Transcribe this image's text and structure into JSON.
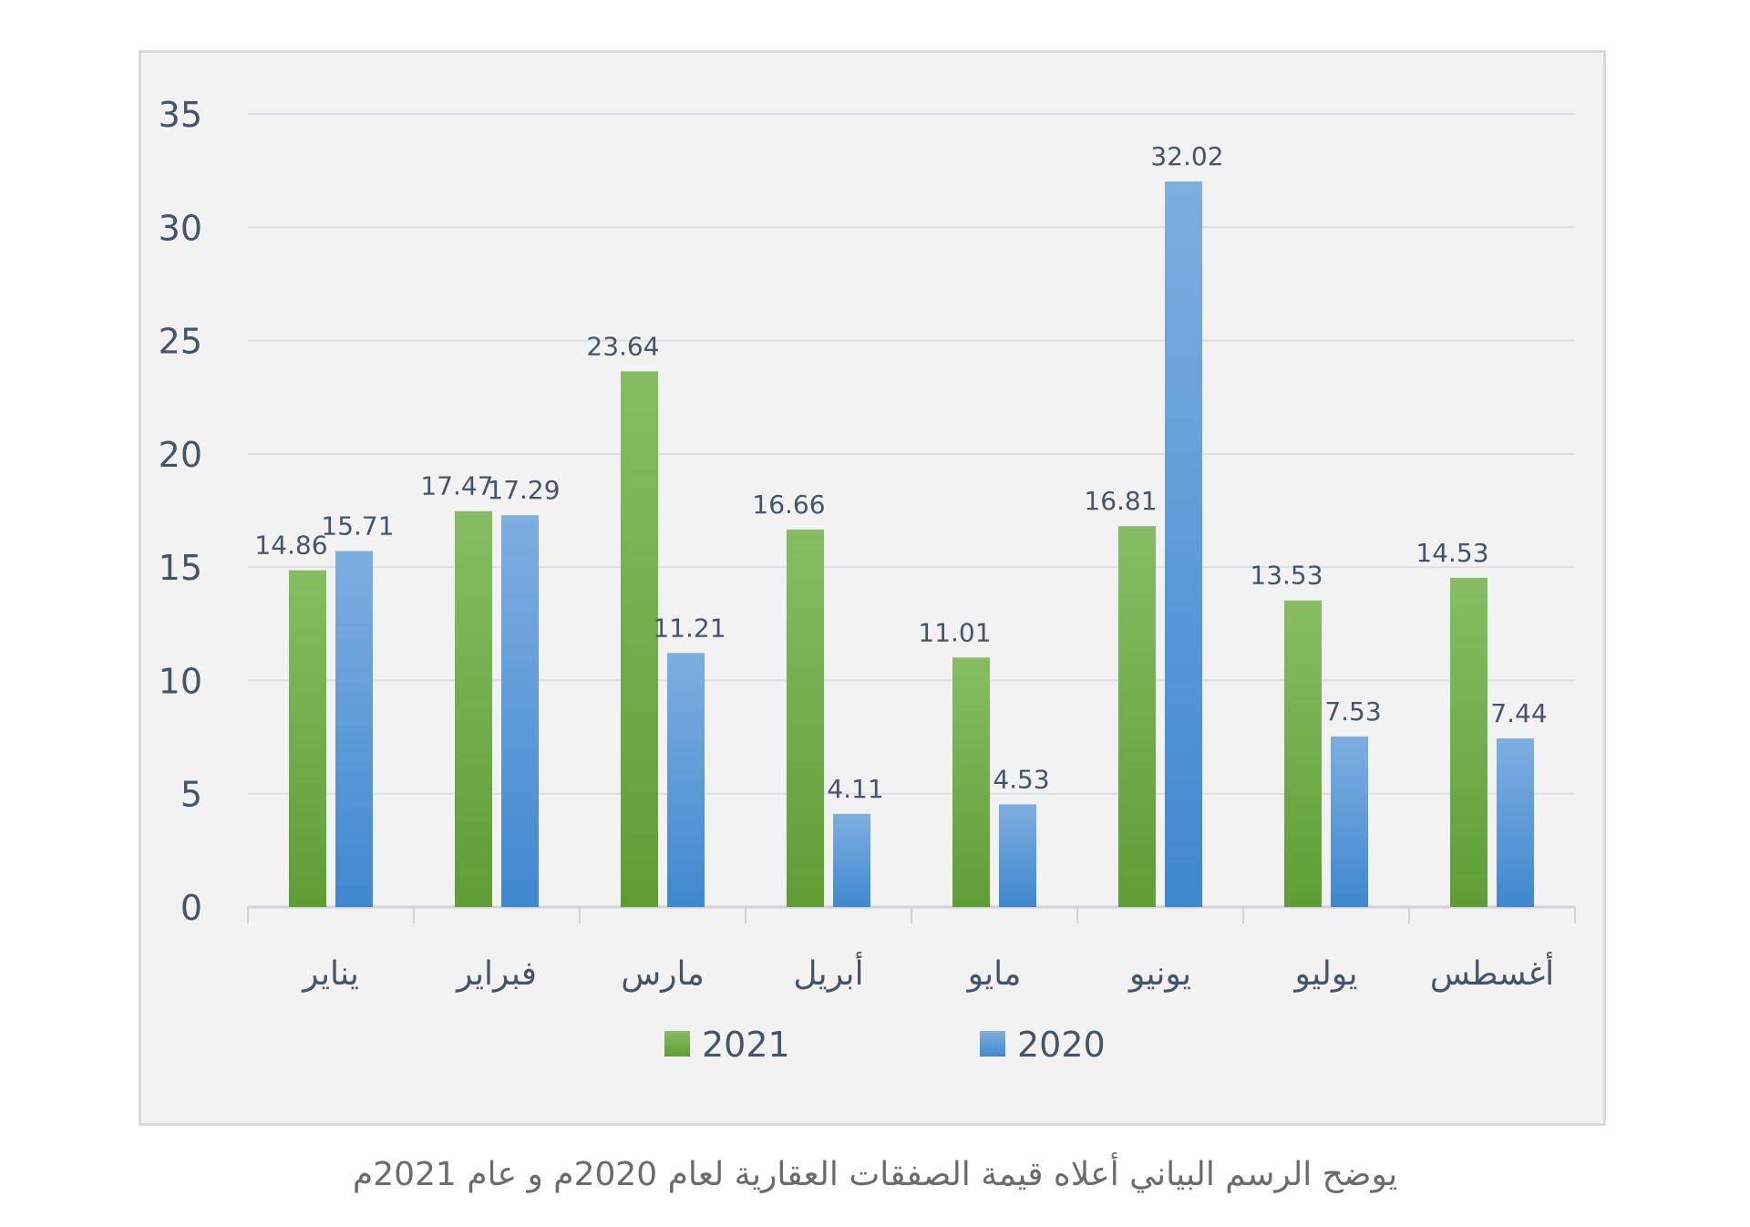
{
  "chart_data": {
    "type": "bar",
    "title": "",
    "xlabel": "",
    "ylabel": "",
    "ylim": [
      0,
      35
    ],
    "yticks": [
      0,
      5,
      10,
      15,
      20,
      25,
      30,
      35
    ],
    "grid": true,
    "legend_position": "bottom",
    "categories": [
      "يناير",
      "فبراير",
      "مارس",
      "أبريل",
      "مايو",
      "يونيو",
      "يوليو",
      "أغسطس"
    ],
    "series": [
      {
        "name": "2021",
        "color": "#70ad47",
        "values": [
          14.86,
          17.47,
          23.64,
          16.66,
          11.01,
          16.81,
          13.53,
          14.53
        ]
      },
      {
        "name": "2020",
        "color": "#5b9bd5",
        "values": [
          15.71,
          17.29,
          11.21,
          4.11,
          4.53,
          32.02,
          7.53,
          7.44
        ]
      }
    ]
  },
  "caption": "يوضح الرسم البياني أعلاه قيمة الصفقات العقارية لعام 2020م و عام 2021م"
}
